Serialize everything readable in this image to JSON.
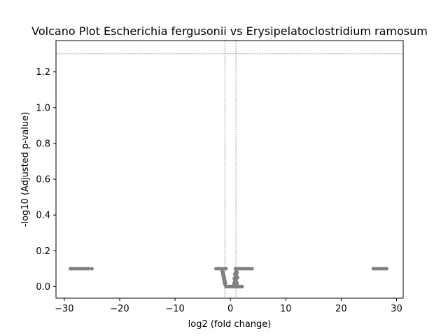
{
  "chart_data": {
    "type": "scatter",
    "title": "Volcano Plot Escherichia fergusonii vs Erysipelatoclostridium ramosum",
    "xlabel": "log2 (fold change)",
    "ylabel": "-log10 (Adjusted p-value)",
    "xlim": [
      -31.5,
      31.2
    ],
    "ylim": [
      -0.065,
      1.375
    ],
    "xticks": [
      -30,
      -20,
      -10,
      0,
      10,
      20,
      30
    ],
    "yticks": [
      0.0,
      0.2,
      0.4,
      0.6,
      0.8,
      1.0,
      1.2
    ],
    "xtick_labels": [
      "−30",
      "−20",
      "−10",
      "0",
      "10",
      "20",
      "30"
    ],
    "ytick_labels": [
      "0.0",
      "0.2",
      "0.4",
      "0.6",
      "0.8",
      "1.0",
      "1.2"
    ],
    "threshold_lines": {
      "fold_change": [
        -1,
        1
      ],
      "neg_log10_p": 1.301
    },
    "grid": false,
    "marker_color": "#808080",
    "threshold_color": "#808080",
    "points": [
      {
        "x": -28.9,
        "y": 0.1
      },
      {
        "x": -28.6,
        "y": 0.1
      },
      {
        "x": -28.3,
        "y": 0.1
      },
      {
        "x": -28.0,
        "y": 0.1
      },
      {
        "x": -27.7,
        "y": 0.1
      },
      {
        "x": -27.4,
        "y": 0.1
      },
      {
        "x": -27.1,
        "y": 0.1
      },
      {
        "x": -26.8,
        "y": 0.1
      },
      {
        "x": -26.5,
        "y": 0.1
      },
      {
        "x": -26.2,
        "y": 0.1
      },
      {
        "x": -25.9,
        "y": 0.1
      },
      {
        "x": -25.6,
        "y": 0.1
      },
      {
        "x": -25.0,
        "y": 0.1
      },
      {
        "x": 25.8,
        "y": 0.1
      },
      {
        "x": 26.1,
        "y": 0.1
      },
      {
        "x": 26.4,
        "y": 0.1
      },
      {
        "x": 26.7,
        "y": 0.1
      },
      {
        "x": 27.0,
        "y": 0.1
      },
      {
        "x": 27.3,
        "y": 0.1
      },
      {
        "x": 27.6,
        "y": 0.1
      },
      {
        "x": 27.9,
        "y": 0.1
      },
      {
        "x": 28.2,
        "y": 0.1
      },
      {
        "x": -2.6,
        "y": 0.1
      },
      {
        "x": -2.3,
        "y": 0.1
      },
      {
        "x": -2.0,
        "y": 0.1
      },
      {
        "x": -1.7,
        "y": 0.1
      },
      {
        "x": -1.4,
        "y": 0.1
      },
      {
        "x": -1.1,
        "y": 0.1
      },
      {
        "x": -0.8,
        "y": 0.1
      },
      {
        "x": 0.9,
        "y": 0.1
      },
      {
        "x": 1.2,
        "y": 0.1
      },
      {
        "x": 1.5,
        "y": 0.1
      },
      {
        "x": 1.8,
        "y": 0.1
      },
      {
        "x": 2.1,
        "y": 0.1
      },
      {
        "x": 2.4,
        "y": 0.1
      },
      {
        "x": 2.7,
        "y": 0.1
      },
      {
        "x": 3.0,
        "y": 0.1
      },
      {
        "x": 3.3,
        "y": 0.1
      },
      {
        "x": 3.6,
        "y": 0.1
      },
      {
        "x": 3.9,
        "y": 0.1
      },
      {
        "x": -1.5,
        "y": 0.085
      },
      {
        "x": -1.3,
        "y": 0.08
      },
      {
        "x": -1.4,
        "y": 0.07
      },
      {
        "x": -1.2,
        "y": 0.065
      },
      {
        "x": -1.3,
        "y": 0.055
      },
      {
        "x": -1.1,
        "y": 0.05
      },
      {
        "x": -1.2,
        "y": 0.04
      },
      {
        "x": -1.0,
        "y": 0.035
      },
      {
        "x": -1.1,
        "y": 0.025
      },
      {
        "x": -0.9,
        "y": 0.02
      },
      {
        "x": -1.0,
        "y": 0.012
      },
      {
        "x": 1.0,
        "y": 0.085
      },
      {
        "x": 1.2,
        "y": 0.08
      },
      {
        "x": 0.8,
        "y": 0.07
      },
      {
        "x": 1.1,
        "y": 0.065
      },
      {
        "x": 0.9,
        "y": 0.055
      },
      {
        "x": 1.3,
        "y": 0.05
      },
      {
        "x": 0.7,
        "y": 0.045
      },
      {
        "x": 1.0,
        "y": 0.04
      },
      {
        "x": 0.8,
        "y": 0.03
      },
      {
        "x": 1.1,
        "y": 0.025
      },
      {
        "x": 0.7,
        "y": 0.02
      },
      {
        "x": 0.9,
        "y": 0.015
      },
      {
        "x": 1.2,
        "y": 0.018
      },
      {
        "x": 0.6,
        "y": 0.01
      },
      {
        "x": -0.8,
        "y": 0.0
      },
      {
        "x": -0.5,
        "y": 0.0
      },
      {
        "x": -0.2,
        "y": 0.0
      },
      {
        "x": 0.1,
        "y": 0.0
      },
      {
        "x": 0.4,
        "y": 0.0
      },
      {
        "x": 0.7,
        "y": 0.0
      },
      {
        "x": 1.0,
        "y": 0.0
      },
      {
        "x": 1.3,
        "y": 0.0
      },
      {
        "x": 1.6,
        "y": 0.0
      },
      {
        "x": 1.9,
        "y": 0.0
      },
      {
        "x": 2.1,
        "y": 0.0
      }
    ]
  }
}
